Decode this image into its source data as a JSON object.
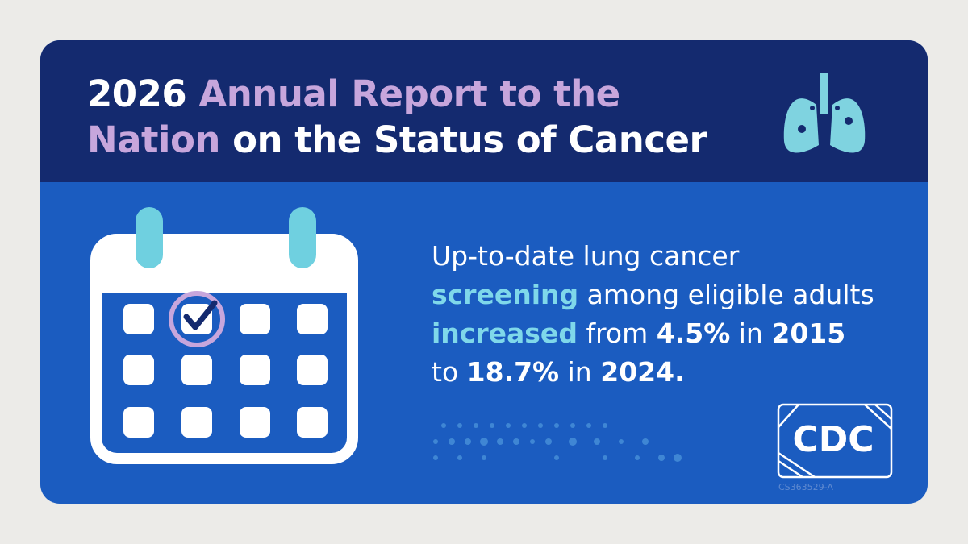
{
  "header": {
    "title": [
      "2026",
      "Annual Report to the",
      "Nation",
      "on the Status of Cancer"
    ]
  },
  "body": {
    "text": [
      "Up-to-date lung cancer",
      "screening",
      "among eligible adults",
      "increased",
      "from",
      "4.5%",
      "in",
      "2015",
      "to",
      "18.7%",
      "in",
      "2024."
    ]
  },
  "logo": {
    "text": "CDC",
    "code": "CS363529-A"
  }
}
